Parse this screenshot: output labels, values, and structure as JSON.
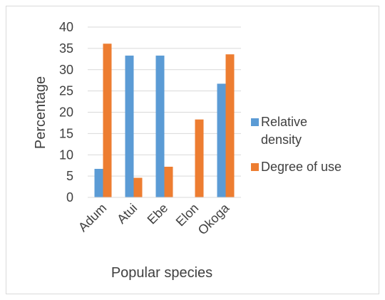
{
  "chart_data": {
    "type": "bar",
    "title": "",
    "xlabel": "Popular species",
    "ylabel": "Percentage",
    "ylim": [
      0,
      40
    ],
    "yticks": [
      0,
      5,
      10,
      15,
      20,
      25,
      30,
      35,
      40
    ],
    "grid": true,
    "legend_position": "right",
    "categories": [
      "Adum",
      "Atui",
      "Ebe",
      "Elon",
      "Okoga"
    ],
    "series": [
      {
        "name": "Relative density",
        "legend_lines": [
          "Relative",
          "density"
        ],
        "color": "#5b9bd5",
        "values": [
          6.7,
          33.3,
          33.3,
          0,
          26.7
        ]
      },
      {
        "name": "Degree of use",
        "legend_lines": [
          "Degree of use"
        ],
        "color": "#ed7d31",
        "values": [
          36.1,
          4.6,
          7.2,
          18.3,
          33.6
        ]
      }
    ]
  }
}
